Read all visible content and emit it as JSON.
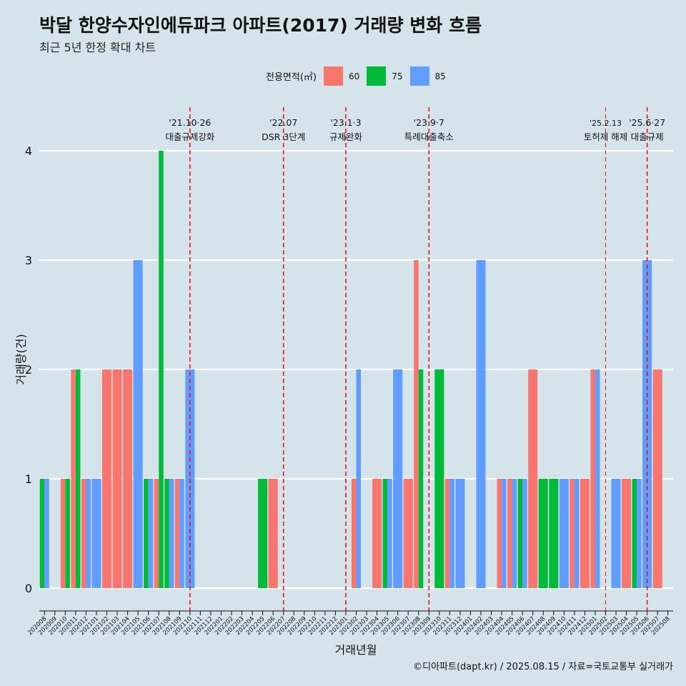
{
  "title": "박달 한양수자인에듀파크 아파트(2017) 거래량 변화 흐름",
  "subtitle": "최근 5년 한정 확대 차트",
  "caption": "©디아파트(dapt.kr) / 2025.08.15 / 자료=국토교통부 실거래가",
  "legend_title": "전용면적(㎡)",
  "colors": {
    "60": "#f8766d",
    "75": "#00ba38",
    "85": "#619cff",
    "vline": "#e8141b",
    "grid": "#ffffff"
  },
  "chart_data": {
    "type": "bar",
    "title": "박달 한양수자인에듀파크 아파트(2017) 거래량 변화 흐름",
    "xlabel": "거래년월",
    "ylabel": "거래량(건)",
    "ylim": [
      0,
      4
    ],
    "yticks": [
      0,
      1,
      2,
      3,
      4
    ],
    "grid": true,
    "legend_position": "top",
    "categories": [
      "202008",
      "202009",
      "202010",
      "202011",
      "202012",
      "202101",
      "202102",
      "202103",
      "202104",
      "202105",
      "202106",
      "202107",
      "202108",
      "202109",
      "202110",
      "202111",
      "202112",
      "202201",
      "202202",
      "202203",
      "202204",
      "202205",
      "202206",
      "202207",
      "202208",
      "202209",
      "202210",
      "202211",
      "202212",
      "202301",
      "202302",
      "202303",
      "202304",
      "202305",
      "202306",
      "202307",
      "202308",
      "202309",
      "202310",
      "202311",
      "202312",
      "202401",
      "202402",
      "202403",
      "202404",
      "202405",
      "202406",
      "202407",
      "202408",
      "202409",
      "202410",
      "202411",
      "202412",
      "202501",
      "202502",
      "202503",
      "202504",
      "202505",
      "202506",
      "202507",
      "202508"
    ],
    "series": [
      {
        "name": "60",
        "values": [
          0,
          0,
          1,
          2,
          1,
          0,
          2,
          2,
          2,
          0,
          0,
          1,
          0,
          1,
          0,
          0,
          0,
          0,
          0,
          0,
          0,
          0,
          1,
          0,
          0,
          0,
          0,
          0,
          0,
          0,
          1,
          0,
          1,
          0,
          0,
          1,
          3,
          0,
          0,
          1,
          0,
          0,
          0,
          0,
          1,
          1,
          0,
          2,
          0,
          0,
          0,
          1,
          1,
          2,
          0,
          0,
          1,
          0,
          0,
          2,
          0
        ]
      },
      {
        "name": "75",
        "values": [
          1,
          0,
          1,
          2,
          0,
          0,
          0,
          0,
          0,
          0,
          1,
          4,
          1,
          0,
          0,
          0,
          0,
          0,
          0,
          0,
          0,
          1,
          0,
          0,
          0,
          0,
          0,
          0,
          0,
          0,
          0,
          0,
          0,
          1,
          0,
          0,
          2,
          0,
          2,
          0,
          0,
          0,
          0,
          0,
          0,
          0,
          1,
          0,
          1,
          1,
          0,
          0,
          0,
          0,
          0,
          0,
          0,
          1,
          0,
          0,
          0
        ]
      },
      {
        "name": "85",
        "values": [
          1,
          0,
          0,
          0,
          1,
          1,
          0,
          0,
          0,
          3,
          1,
          0,
          1,
          1,
          2,
          0,
          0,
          0,
          0,
          0,
          0,
          0,
          0,
          0,
          0,
          0,
          0,
          0,
          0,
          0,
          2,
          0,
          0,
          1,
          2,
          0,
          0,
          0,
          0,
          1,
          1,
          0,
          3,
          0,
          1,
          1,
          1,
          0,
          0,
          0,
          1,
          1,
          0,
          2,
          0,
          1,
          0,
          1,
          3,
          0,
          0
        ]
      }
    ],
    "annotations": [
      {
        "date": "'21.10·26",
        "label": "대출규제강화",
        "at": "202110"
      },
      {
        "date": "'22.07",
        "label": "DSR 3단계",
        "at": "202207"
      },
      {
        "date": "'23.1·3",
        "label": "규제완화",
        "at": "202301"
      },
      {
        "date": "'23.9·7",
        "label": "특례대출축소",
        "at": "202309"
      },
      {
        "date": "'25.2.13",
        "label": "토허제 해제",
        "at": "202502"
      },
      {
        "date": "'25.6·27",
        "label": "대출규제",
        "at": "202506"
      }
    ]
  }
}
